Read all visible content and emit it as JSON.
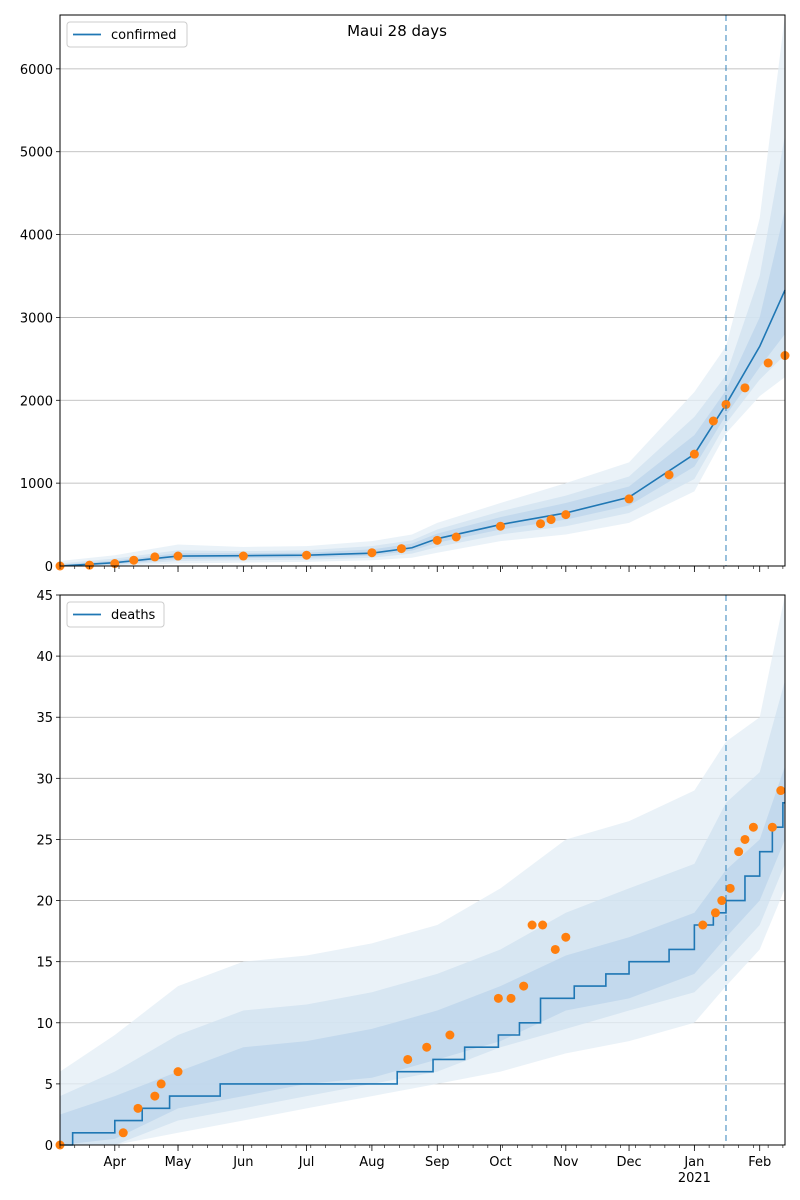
{
  "chart_data": [
    {
      "type": "line",
      "title": "Maui 28 days",
      "xlabel": "",
      "ylabel": "",
      "ylim": [
        0,
        6650
      ],
      "y_ticks": [
        0,
        1000,
        2000,
        3000,
        4000,
        5000,
        6000
      ],
      "grid": "horizontal",
      "legend_position": "top-left",
      "series": [
        {
          "name": "confirmed",
          "kind": "model-median-line",
          "color": "#1f77b4",
          "x": [
            "2020-03-06",
            "2020-04-01",
            "2020-05-01",
            "2020-06-01",
            "2020-07-01",
            "2020-08-01",
            "2020-08-20",
            "2020-09-01",
            "2020-10-01",
            "2020-11-01",
            "2020-12-01",
            "2021-01-01",
            "2021-01-16",
            "2021-02-01",
            "2021-02-13"
          ],
          "values": [
            0,
            40,
            120,
            125,
            130,
            155,
            220,
            330,
            500,
            640,
            830,
            1350,
            1950,
            2650,
            3330
          ]
        },
        {
          "name": "",
          "kind": "observed-points",
          "color": "#ff7f0e",
          "x": [
            "2020-03-06",
            "2020-03-20",
            "2020-04-01",
            "2020-04-10",
            "2020-04-20",
            "2020-05-01",
            "2020-06-01",
            "2020-07-01",
            "2020-08-01",
            "2020-08-15",
            "2020-09-01",
            "2020-09-10",
            "2020-10-01",
            "2020-10-20",
            "2020-10-25",
            "2020-11-01",
            "2020-12-01",
            "2020-12-20",
            "2021-01-01",
            "2021-01-10",
            "2021-01-16",
            "2021-01-25",
            "2021-02-05",
            "2021-02-13"
          ],
          "values": [
            0,
            10,
            30,
            70,
            110,
            120,
            120,
            130,
            160,
            210,
            310,
            350,
            480,
            510,
            560,
            620,
            810,
            1100,
            1350,
            1750,
            1950,
            2150,
            2450,
            2540
          ]
        }
      ],
      "bands": [
        {
          "level": "outer",
          "upper": [
            60,
            130,
            260,
            230,
            240,
            300,
            380,
            520,
            760,
            1000,
            1250,
            2100,
            2650,
            4200,
            6650
          ],
          "lower": [
            0,
            0,
            30,
            40,
            50,
            70,
            100,
            160,
            300,
            380,
            520,
            900,
            1600,
            2050,
            2280
          ]
        },
        {
          "level": "middle",
          "upper": [
            30,
            90,
            190,
            180,
            190,
            240,
            310,
            440,
            660,
            850,
            1080,
            1800,
            2300,
            3500,
            5200
          ],
          "lower": [
            0,
            10,
            60,
            70,
            75,
            100,
            150,
            230,
            380,
            480,
            640,
            1050,
            1720,
            2250,
            2550
          ]
        },
        {
          "level": "inner",
          "upper": [
            15,
            65,
            155,
            155,
            160,
            200,
            270,
            390,
            590,
            760,
            960,
            1580,
            2120,
            3000,
            4300
          ],
          "lower": [
            0,
            20,
            85,
            95,
            100,
            125,
            185,
            280,
            440,
            560,
            730,
            1200,
            1820,
            2400,
            2800
          ]
        }
      ],
      "forecast_start": "2021-01-16"
    },
    {
      "type": "line",
      "xlabel": "",
      "ylabel": "",
      "ylim": [
        0,
        45
      ],
      "y_ticks": [
        0,
        5,
        10,
        15,
        20,
        25,
        30,
        35,
        40,
        45
      ],
      "x_tick_labels": [
        "Apr",
        "May",
        "Jun",
        "Jul",
        "Aug",
        "Sep",
        "Oct",
        "Nov",
        "Dec",
        "Jan",
        "Feb"
      ],
      "x_year_label": "2021",
      "grid": "horizontal",
      "legend_position": "top-left",
      "series": [
        {
          "name": "deaths",
          "kind": "model-median-step",
          "color": "#1f77b4",
          "x": [
            "2020-03-06",
            "2020-03-12",
            "2020-04-01",
            "2020-04-14",
            "2020-04-27",
            "2020-05-21",
            "2020-08-13",
            "2020-08-30",
            "2020-09-14",
            "2020-09-30",
            "2020-10-10",
            "2020-10-20",
            "2020-11-05",
            "2020-11-20",
            "2020-12-01",
            "2020-12-20",
            "2021-01-01",
            "2021-01-10",
            "2021-01-16",
            "2021-01-25",
            "2021-02-01",
            "2021-02-07",
            "2021-02-12"
          ],
          "values": [
            0,
            1,
            2,
            3,
            4,
            5,
            6,
            7,
            8,
            9,
            10,
            12,
            13,
            14,
            15,
            16,
            18,
            19,
            20,
            22,
            24,
            26,
            28
          ]
        },
        {
          "name": "",
          "kind": "observed-points",
          "color": "#ff7f0e",
          "x": [
            "2020-03-06",
            "2020-04-05",
            "2020-04-12",
            "2020-04-20",
            "2020-04-23",
            "2020-05-01",
            "2020-08-18",
            "2020-08-27",
            "2020-09-07",
            "2020-09-30",
            "2020-10-06",
            "2020-10-12",
            "2020-10-16",
            "2020-10-21",
            "2020-10-27",
            "2020-11-01",
            "2021-01-05",
            "2021-01-11",
            "2021-01-14",
            "2021-01-18",
            "2021-01-22",
            "2021-01-25",
            "2021-01-29",
            "2021-02-07",
            "2021-02-11"
          ],
          "values": [
            0,
            1,
            3,
            4,
            5,
            6,
            7,
            8,
            9,
            12,
            12,
            13,
            18,
            18,
            16,
            17,
            18,
            19,
            20,
            21,
            24,
            25,
            26,
            26,
            29
          ]
        }
      ],
      "bands": [
        {
          "level": "outer",
          "upper": [
            6,
            9,
            13,
            15,
            15.5,
            16.5,
            18,
            21,
            25,
            26.5,
            29,
            33,
            35,
            45
          ],
          "lower": [
            0,
            0,
            1,
            2,
            3,
            4,
            5,
            6,
            7.5,
            8.5,
            10,
            13,
            16,
            21
          ]
        },
        {
          "level": "middle",
          "upper": [
            4,
            6,
            9,
            11,
            11.5,
            12.5,
            14,
            16,
            19,
            21,
            23,
            28,
            30.5,
            38
          ],
          "lower": [
            0,
            0,
            2,
            3,
            4,
            5,
            6,
            8,
            9.5,
            11,
            12.5,
            15,
            18,
            23
          ]
        },
        {
          "level": "inner",
          "upper": [
            2.5,
            4,
            6,
            8,
            8.5,
            9.5,
            11,
            13,
            15.5,
            17,
            19,
            22.5,
            25,
            31
          ],
          "lower": [
            0,
            0.5,
            3,
            4,
            5,
            5.5,
            7,
            8.5,
            11,
            12,
            14,
            17,
            20,
            25
          ]
        }
      ],
      "band_x": [
        "2020-03-06",
        "2020-04-01",
        "2020-05-01",
        "2020-06-01",
        "2020-07-01",
        "2020-08-01",
        "2020-09-01",
        "2020-10-01",
        "2020-11-01",
        "2020-12-01",
        "2021-01-01",
        "2021-01-16",
        "2021-02-01",
        "2021-02-13"
      ],
      "forecast_start": "2021-01-16"
    }
  ]
}
